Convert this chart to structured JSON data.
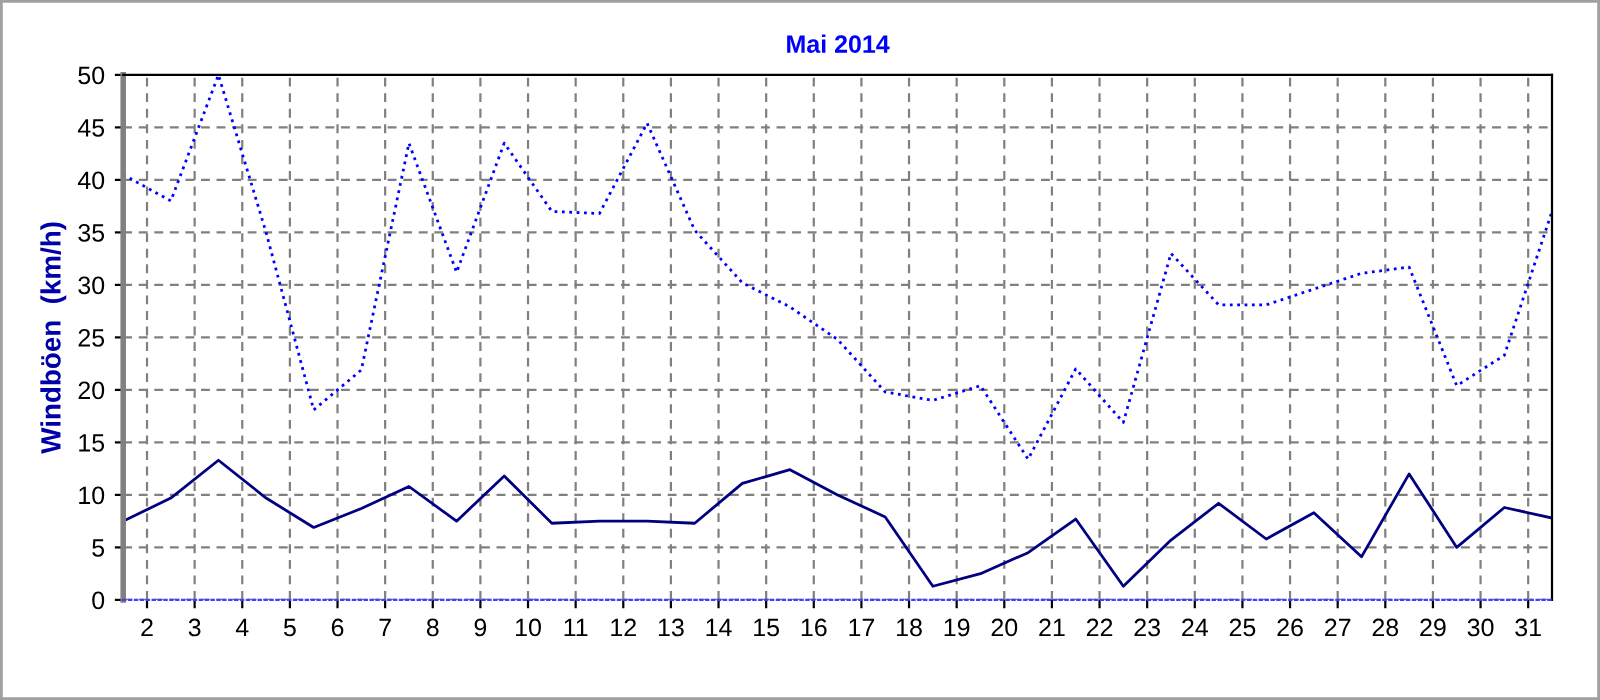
{
  "chart_data": {
    "type": "line",
    "title": "Mai 2014",
    "ylabel": "Windböen  (km/h)",
    "x": [
      1.5,
      2.5,
      3.5,
      4.5,
      5.5,
      6.5,
      7.5,
      8.5,
      9.5,
      10.5,
      11.5,
      12.5,
      13.5,
      14.5,
      15.5,
      16.5,
      17.5,
      18.5,
      19.5,
      20.5,
      21.5,
      22.5,
      23.5,
      24.5,
      25.5,
      26.5,
      27.5,
      28.5,
      29.5,
      30.5,
      31.5
    ],
    "series": [
      {
        "color": "#0000ff",
        "line_style": "dotted",
        "values": [
          40.5,
          38.0,
          50.0,
          35.0,
          18.1,
          21.9,
          43.5,
          31.2,
          43.5,
          37.0,
          36.8,
          45.4,
          35.2,
          30.2,
          27.9,
          24.8,
          19.8,
          19.0,
          20.4,
          13.4,
          22.0,
          16.9,
          33.0,
          28.1,
          28.1,
          29.6,
          31.1,
          31.7,
          20.4,
          23.3,
          37.0
        ]
      },
      {
        "color": "#000080",
        "line_style": "solid",
        "values": [
          7.5,
          9.7,
          13.3,
          9.7,
          6.9,
          8.7,
          10.8,
          7.5,
          11.8,
          7.3,
          7.5,
          7.5,
          7.3,
          11.1,
          12.4,
          10.0,
          7.9,
          1.3,
          2.5,
          4.5,
          7.7,
          1.3,
          5.7,
          9.2,
          5.8,
          8.3,
          4.1,
          12.0,
          5.0,
          8.8,
          7.8
        ]
      }
    ],
    "xlim": [
      1.5,
      31.5
    ],
    "xticks": [
      2,
      3,
      4,
      5,
      6,
      7,
      8,
      9,
      10,
      11,
      12,
      13,
      14,
      15,
      16,
      17,
      18,
      19,
      20,
      21,
      22,
      23,
      24,
      25,
      26,
      27,
      28,
      29,
      30,
      31
    ],
    "ylim": [
      0,
      50
    ],
    "yticks": [
      0,
      5,
      10,
      15,
      20,
      25,
      30,
      35,
      40,
      45,
      50
    ],
    "grid": true,
    "marker": "none"
  }
}
